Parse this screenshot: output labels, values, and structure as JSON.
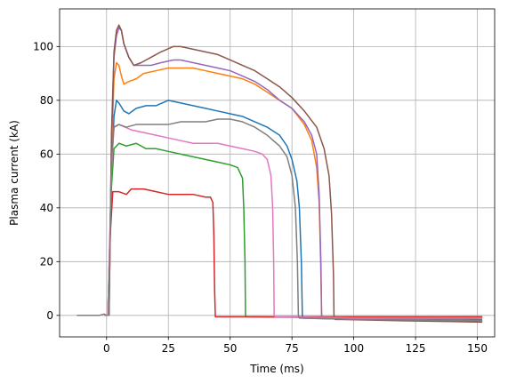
{
  "chart_data": {
    "type": "line",
    "title": "",
    "xlabel": "Time (ms)",
    "ylabel": "Plasma current (kA)",
    "xlim": [
      -19,
      157
    ],
    "ylim": [
      -8,
      114
    ],
    "xticks": [
      0,
      25,
      50,
      75,
      100,
      125,
      150
    ],
    "yticks": [
      0,
      20,
      40,
      60,
      80,
      100
    ],
    "grid": true,
    "legend": "none",
    "series": [
      {
        "color": "#1f77b4",
        "points": [
          [
            0.5,
            0
          ],
          [
            2,
            52
          ],
          [
            3,
            74
          ],
          [
            4,
            80
          ],
          [
            5,
            79
          ],
          [
            7,
            76
          ],
          [
            9,
            75
          ],
          [
            12,
            77
          ],
          [
            16,
            78
          ],
          [
            20,
            78
          ],
          [
            25,
            80
          ],
          [
            30,
            79
          ],
          [
            35,
            78
          ],
          [
            40,
            77
          ],
          [
            45,
            76
          ],
          [
            50,
            75
          ],
          [
            55,
            74
          ],
          [
            60,
            72
          ],
          [
            65,
            70
          ],
          [
            70,
            67
          ],
          [
            73,
            63
          ],
          [
            75,
            58
          ],
          [
            77,
            50
          ],
          [
            78,
            40
          ],
          [
            78.8,
            20
          ],
          [
            79.2,
            0
          ],
          [
            79.6,
            -1
          ],
          [
            100,
            -1.5
          ],
          [
            152,
            -2
          ]
        ]
      },
      {
        "color": "#ff7f0e",
        "points": [
          [
            -1,
            0
          ],
          [
            1,
            0
          ],
          [
            2,
            60
          ],
          [
            3,
            88
          ],
          [
            4,
            94
          ],
          [
            5,
            93
          ],
          [
            6,
            89
          ],
          [
            7,
            86
          ],
          [
            9,
            87
          ],
          [
            12,
            88
          ],
          [
            15,
            90
          ],
          [
            20,
            91
          ],
          [
            25,
            92
          ],
          [
            30,
            92
          ],
          [
            35,
            92
          ],
          [
            40,
            91
          ],
          [
            45,
            90
          ],
          [
            50,
            89
          ],
          [
            55,
            88
          ],
          [
            60,
            86
          ],
          [
            65,
            83
          ],
          [
            70,
            80
          ],
          [
            75,
            77
          ],
          [
            80,
            71
          ],
          [
            83,
            65
          ],
          [
            85,
            55
          ],
          [
            86,
            42
          ],
          [
            86.6,
            20
          ],
          [
            87,
            0
          ],
          [
            87.4,
            -1
          ],
          [
            100,
            -1
          ],
          [
            152,
            -0.5
          ]
        ]
      },
      {
        "color": "#2ca02c",
        "points": [
          [
            0.5,
            0
          ],
          [
            2,
            48
          ],
          [
            3,
            62
          ],
          [
            5,
            64
          ],
          [
            8,
            63
          ],
          [
            12,
            64
          ],
          [
            16,
            62
          ],
          [
            20,
            62
          ],
          [
            25,
            61
          ],
          [
            30,
            60
          ],
          [
            35,
            59
          ],
          [
            40,
            58
          ],
          [
            45,
            57
          ],
          [
            50,
            56
          ],
          [
            53,
            55
          ],
          [
            55,
            51
          ],
          [
            55.5,
            40
          ],
          [
            56,
            20
          ],
          [
            56.2,
            0
          ],
          [
            56.6,
            -0.5
          ],
          [
            100,
            -1
          ],
          [
            152,
            -1.5
          ]
        ]
      },
      {
        "color": "#d62728",
        "points": [
          [
            0.5,
            0
          ],
          [
            1.5,
            30
          ],
          [
            2.5,
            46
          ],
          [
            5,
            46
          ],
          [
            8,
            45
          ],
          [
            10,
            47
          ],
          [
            15,
            47
          ],
          [
            20,
            46
          ],
          [
            25,
            45
          ],
          [
            30,
            45
          ],
          [
            35,
            45
          ],
          [
            40,
            44
          ],
          [
            42,
            44
          ],
          [
            43,
            42
          ],
          [
            43.4,
            30
          ],
          [
            43.7,
            10
          ],
          [
            44,
            -0.5
          ],
          [
            60,
            -0.5
          ],
          [
            100,
            -0.5
          ],
          [
            152,
            -0.5
          ]
        ]
      },
      {
        "color": "#9467bd",
        "points": [
          [
            1,
            0
          ],
          [
            2,
            65
          ],
          [
            3,
            96
          ],
          [
            4,
            104
          ],
          [
            5,
            107
          ],
          [
            6,
            106
          ],
          [
            7,
            101
          ],
          [
            9,
            96
          ],
          [
            11,
            93
          ],
          [
            14,
            93
          ],
          [
            18,
            93
          ],
          [
            22,
            94
          ],
          [
            27,
            95
          ],
          [
            30,
            95
          ],
          [
            35,
            94
          ],
          [
            40,
            93
          ],
          [
            45,
            92
          ],
          [
            50,
            91
          ],
          [
            55,
            89
          ],
          [
            60,
            87
          ],
          [
            65,
            84
          ],
          [
            70,
            80
          ],
          [
            75,
            77
          ],
          [
            80,
            72
          ],
          [
            83,
            67
          ],
          [
            85,
            60
          ],
          [
            86,
            45
          ],
          [
            86.7,
            20
          ],
          [
            87,
            0
          ],
          [
            87.4,
            -1
          ],
          [
            100,
            -1
          ],
          [
            152,
            -1
          ]
        ]
      },
      {
        "color": "#8c564b",
        "points": [
          [
            1,
            0
          ],
          [
            2,
            68
          ],
          [
            3,
            98
          ],
          [
            4,
            106
          ],
          [
            5,
            108
          ],
          [
            6,
            106
          ],
          [
            7,
            101
          ],
          [
            9,
            96
          ],
          [
            11,
            93
          ],
          [
            14,
            94
          ],
          [
            18,
            96
          ],
          [
            22,
            98
          ],
          [
            27,
            100
          ],
          [
            30,
            100
          ],
          [
            35,
            99
          ],
          [
            40,
            98
          ],
          [
            45,
            97
          ],
          [
            50,
            95
          ],
          [
            55,
            93
          ],
          [
            60,
            91
          ],
          [
            65,
            88
          ],
          [
            70,
            85
          ],
          [
            75,
            81
          ],
          [
            80,
            76
          ],
          [
            85,
            70
          ],
          [
            88,
            62
          ],
          [
            90,
            52
          ],
          [
            91,
            38
          ],
          [
            91.8,
            15
          ],
          [
            92,
            0
          ],
          [
            92.4,
            -1.5
          ],
          [
            120,
            -2
          ],
          [
            152,
            -2.5
          ]
        ]
      },
      {
        "color": "#e377c2",
        "points": [
          [
            0.5,
            0
          ],
          [
            2,
            55
          ],
          [
            3,
            70
          ],
          [
            5,
            71
          ],
          [
            10,
            69
          ],
          [
            15,
            68
          ],
          [
            20,
            67
          ],
          [
            25,
            66
          ],
          [
            30,
            65
          ],
          [
            35,
            64
          ],
          [
            40,
            64
          ],
          [
            45,
            64
          ],
          [
            50,
            63
          ],
          [
            55,
            62
          ],
          [
            60,
            61
          ],
          [
            63,
            60
          ],
          [
            65,
            58
          ],
          [
            66.5,
            52
          ],
          [
            67.2,
            40
          ],
          [
            67.6,
            20
          ],
          [
            67.8,
            0
          ],
          [
            68.2,
            -0.5
          ],
          [
            100,
            -1
          ],
          [
            152,
            -1
          ]
        ]
      },
      {
        "color": "#7f7f7f",
        "points": [
          [
            -12,
            0
          ],
          [
            -3,
            0
          ],
          [
            -1,
            0.5
          ],
          [
            0,
            0
          ],
          [
            0.8,
            0
          ],
          [
            2,
            58
          ],
          [
            3,
            70
          ],
          [
            5,
            71
          ],
          [
            8,
            70
          ],
          [
            12,
            71
          ],
          [
            18,
            71
          ],
          [
            25,
            71
          ],
          [
            30,
            72
          ],
          [
            35,
            72
          ],
          [
            40,
            72
          ],
          [
            45,
            73
          ],
          [
            50,
            73
          ],
          [
            55,
            72
          ],
          [
            60,
            70
          ],
          [
            65,
            67
          ],
          [
            70,
            63
          ],
          [
            73,
            59
          ],
          [
            75,
            52
          ],
          [
            76.4,
            40
          ],
          [
            77.2,
            20
          ],
          [
            77.6,
            0
          ],
          [
            78,
            -1
          ],
          [
            100,
            -1.5
          ],
          [
            152,
            -2
          ]
        ]
      }
    ]
  }
}
